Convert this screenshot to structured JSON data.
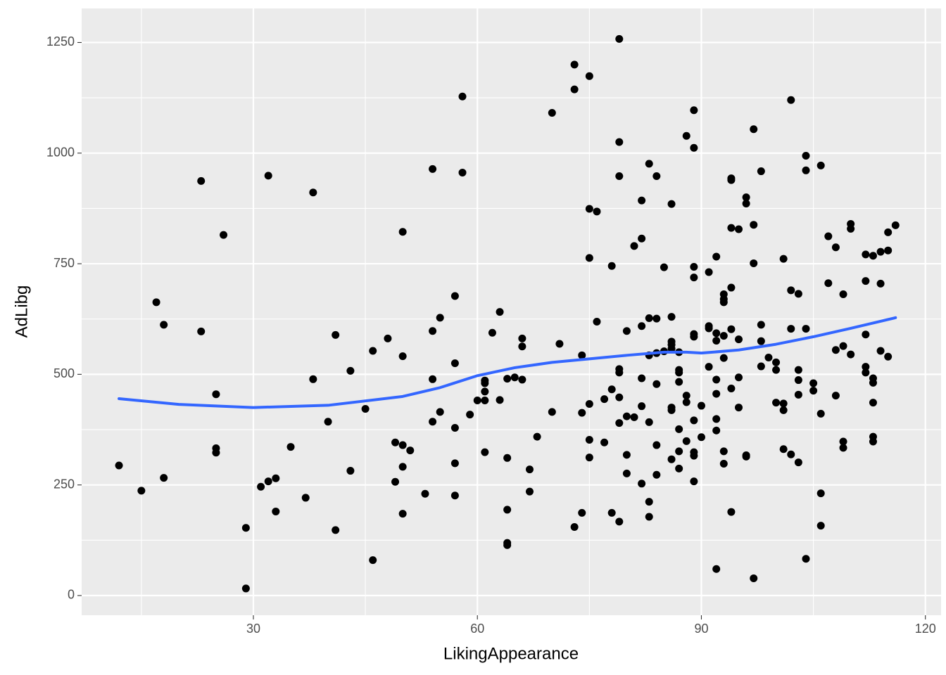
{
  "chart_data": {
    "type": "scatter",
    "x_label": "LikingAppearance",
    "y_label": "AdLibg",
    "xlim": [
      7,
      122.1
    ],
    "ylim": [
      -44.5,
      1327
    ],
    "xticks": [
      30,
      60,
      90,
      120
    ],
    "yticks": [
      0,
      250,
      500,
      750,
      1000,
      1250
    ],
    "grid": true,
    "series": [
      {
        "type": "scatter",
        "color": "#000000",
        "x": [
          12,
          15,
          17,
          18,
          18,
          23,
          23,
          26,
          25,
          25,
          25,
          29,
          29,
          31,
          32,
          32,
          33,
          33,
          35,
          37,
          38,
          38,
          40,
          41,
          41,
          43,
          43,
          45,
          46,
          46,
          48,
          49,
          49,
          50,
          50,
          50,
          50,
          50,
          51,
          53,
          54,
          54,
          54,
          54,
          55,
          55,
          57,
          57,
          57,
          57,
          57,
          58,
          58,
          59,
          60,
          61,
          61,
          61,
          61,
          61,
          62,
          63,
          63,
          64,
          64,
          64,
          64,
          64,
          65,
          66,
          66,
          66,
          67,
          67,
          68,
          70,
          70,
          71,
          73,
          73,
          73,
          74,
          74,
          74,
          75,
          75,
          75,
          75,
          75,
          75,
          76,
          76,
          77,
          77,
          78,
          78,
          78,
          79,
          79,
          79,
          79,
          79,
          79,
          79,
          79,
          80,
          80,
          80,
          80,
          81,
          81,
          82,
          82,
          82,
          82,
          82,
          82,
          83,
          83,
          83,
          83,
          83,
          83,
          84,
          84,
          84,
          84,
          84,
          84,
          85,
          85,
          86,
          86,
          86,
          86,
          86,
          86,
          86,
          86,
          87,
          87,
          87,
          87,
          87,
          87,
          87,
          88,
          88,
          88,
          88,
          89,
          89,
          89,
          89,
          89,
          89,
          89,
          89,
          89,
          89,
          90,
          90,
          91,
          91,
          91,
          91,
          92,
          92,
          92,
          92,
          92,
          92,
          92,
          92,
          93,
          93,
          93,
          93,
          93,
          93,
          93,
          94,
          94,
          94,
          94,
          94,
          94,
          94,
          95,
          95,
          95,
          95,
          96,
          96,
          96,
          96,
          97,
          97,
          97,
          97,
          98,
          98,
          98,
          98,
          99,
          100,
          100,
          100,
          101,
          101,
          101,
          101,
          102,
          102,
          102,
          102,
          103,
          103,
          103,
          103,
          103,
          104,
          104,
          104,
          104,
          105,
          105,
          106,
          106,
          106,
          106,
          107,
          107,
          108,
          108,
          108,
          109,
          109,
          109,
          109,
          110,
          110,
          110,
          112,
          112,
          112,
          112,
          112,
          113,
          113,
          113,
          113,
          113,
          113,
          114,
          114,
          114,
          115,
          115,
          115,
          116
        ],
        "values": [
          294,
          237,
          663,
          612,
          266,
          937,
          597,
          815,
          455,
          333,
          323,
          153,
          16,
          246,
          949,
          258,
          265,
          190,
          336,
          221,
          911,
          489,
          393,
          148,
          589,
          508,
          282,
          422,
          553,
          80,
          581,
          346,
          257,
          822,
          541,
          340,
          291,
          185,
          328,
          230,
          964,
          598,
          489,
          393,
          628,
          415,
          677,
          525,
          379,
          299,
          226,
          1128,
          956,
          409,
          441,
          486,
          480,
          461,
          441,
          324,
          594,
          641,
          442,
          490,
          311,
          194,
          119,
          114,
          493,
          581,
          563,
          488,
          285,
          235,
          359,
          1091,
          415,
          569,
          1200,
          1144,
          155,
          543,
          413,
          187,
          1174,
          874,
          763,
          433,
          352,
          312,
          868,
          619,
          444,
          346,
          745,
          466,
          187,
          1258,
          1025,
          948,
          512,
          504,
          448,
          390,
          167,
          598,
          405,
          318,
          276,
          790,
          403,
          893,
          807,
          609,
          491,
          428,
          253,
          976,
          627,
          543,
          392,
          212,
          178,
          948,
          626,
          548,
          478,
          340,
          273,
          742,
          552,
          885,
          630,
          574,
          567,
          558,
          425,
          419,
          308,
          550,
          510,
          504,
          483,
          376,
          326,
          287,
          1039,
          452,
          437,
          349,
          1097,
          1012,
          743,
          719,
          591,
          585,
          396,
          324,
          316,
          258,
          429,
          358,
          731,
          609,
          604,
          517,
          766,
          593,
          576,
          488,
          456,
          399,
          373,
          60,
          681,
          670,
          663,
          587,
          537,
          326,
          298,
          943,
          939,
          831,
          696,
          602,
          468,
          189,
          828,
          579,
          493,
          425,
          900,
          886,
          317,
          314,
          1054,
          838,
          751,
          39,
          959,
          612,
          575,
          518,
          538,
          527,
          510,
          436,
          761,
          434,
          419,
          331,
          1120,
          690,
          603,
          319,
          682,
          510,
          487,
          454,
          301,
          994,
          961,
          603,
          83,
          480,
          463,
          972,
          411,
          231,
          158,
          812,
          706,
          787,
          555,
          452,
          681,
          564,
          348,
          334,
          840,
          829,
          545,
          771,
          711,
          590,
          517,
          504,
          768,
          491,
          481,
          436,
          359,
          348,
          777,
          705,
          553,
          821,
          780,
          540,
          837
        ]
      },
      {
        "type": "line",
        "color": "#3366ff",
        "x": [
          12,
          20,
          30,
          40,
          50,
          55,
          60,
          65,
          70,
          75,
          80,
          85,
          88,
          90,
          95,
          100,
          105,
          110,
          116
        ],
        "values": [
          445,
          432,
          425,
          430,
          450,
          470,
          497,
          515,
          527,
          535,
          543,
          550,
          550,
          548,
          555,
          568,
          585,
          604,
          628
        ]
      }
    ]
  }
}
